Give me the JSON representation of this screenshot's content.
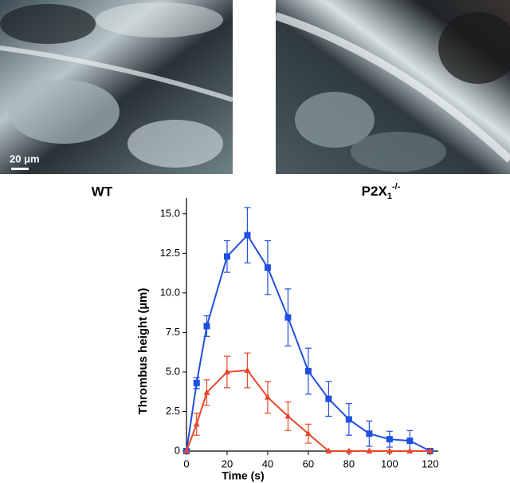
{
  "panels": [
    {
      "label": "WT",
      "scale_bar": "20 μm"
    },
    {
      "label": {
        "text": "P2X",
        "sub": "1",
        "sup": "-/-"
      }
    }
  ],
  "chart_data": {
    "type": "line",
    "x_label": "Time (s)",
    "y_label": "Thrombus height (µm)",
    "xlim": [
      0,
      124
    ],
    "ylim": [
      0,
      16
    ],
    "xticks": [
      0,
      20,
      40,
      60,
      80,
      100,
      120
    ],
    "yticks": [
      0,
      2.5,
      {
        "value": 5,
        "label": "5.0"
      },
      7.5,
      {
        "value": 10,
        "label": "10.0"
      },
      12.5,
      {
        "value": 15,
        "label": "15.0"
      }
    ],
    "series": [
      {
        "color": "#1f4fe0",
        "marker": "square",
        "x": [
          0,
          5,
          10,
          20,
          30,
          40,
          50,
          60,
          70,
          80,
          90,
          100,
          110,
          120
        ],
        "values": [
          0,
          4.3,
          7.9,
          12.3,
          13.65,
          11.6,
          8.45,
          5.05,
          3.3,
          2.0,
          1.1,
          0.75,
          0.65,
          0
        ],
        "errors": [
          0,
          0.35,
          0.65,
          1.0,
          1.75,
          1.7,
          1.8,
          1.45,
          1.1,
          1.0,
          0.8,
          0.5,
          0.65,
          0
        ]
      },
      {
        "color": "#e8472a",
        "marker": "triangle",
        "x": [
          0,
          5,
          10,
          20,
          30,
          40,
          50,
          60,
          70,
          80,
          90,
          100,
          110,
          120
        ],
        "values": [
          0,
          1.7,
          3.7,
          5.0,
          5.1,
          3.4,
          2.2,
          1.1,
          0,
          0,
          0,
          0,
          0,
          0
        ],
        "errors": [
          0,
          0.7,
          0.8,
          1.0,
          1.1,
          1.0,
          0.9,
          0.6,
          0,
          0,
          0,
          0,
          0,
          0
        ]
      }
    ]
  }
}
